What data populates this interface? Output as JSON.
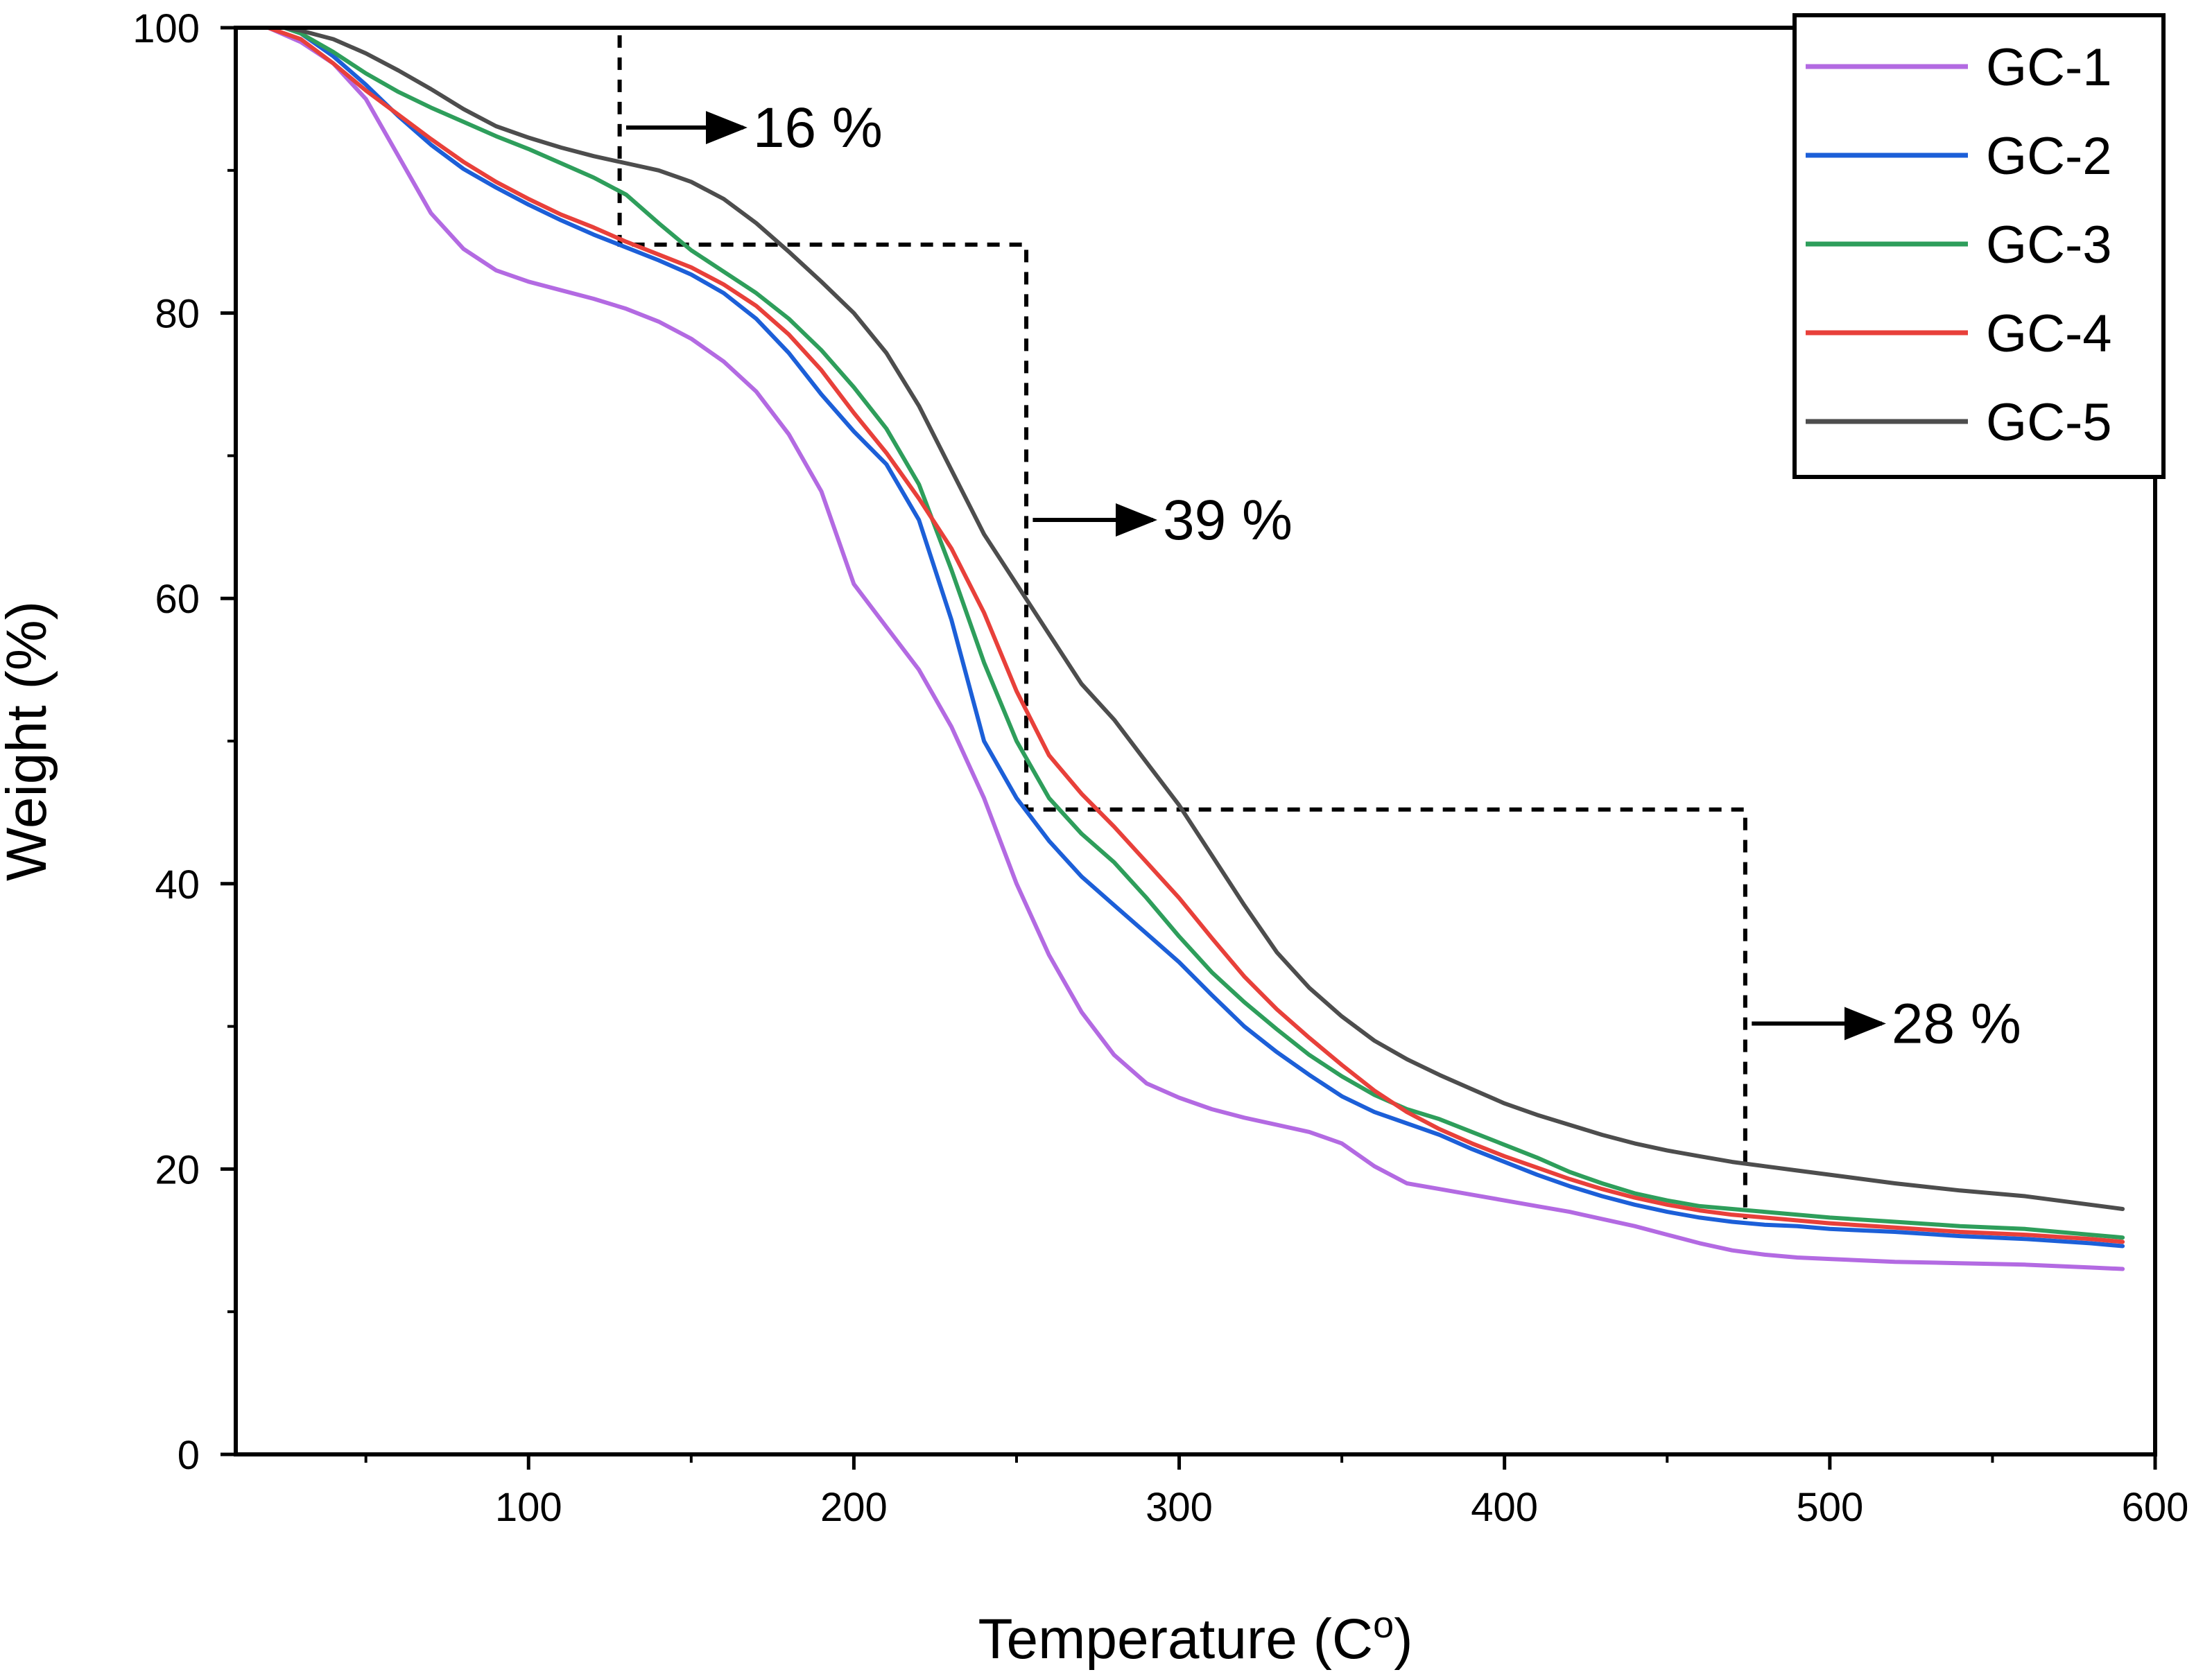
{
  "chart_data": {
    "type": "line",
    "title": "",
    "xlabel": "Temperature (C",
    "xlabel_sup": "o",
    "xlabel_close": ")",
    "ylabel": "Weight (%)",
    "xlim": [
      10,
      600
    ],
    "ylim": [
      0,
      100
    ],
    "xticks": [
      100,
      200,
      300,
      400,
      500,
      600
    ],
    "xticks_minor": [
      50,
      150,
      250,
      350,
      450,
      550
    ],
    "yticks": [
      0,
      20,
      40,
      60,
      80,
      100
    ],
    "yticks_minor": [
      10,
      30,
      50,
      70,
      90
    ],
    "legend_position": "top-right",
    "series": [
      {
        "name": "GC-1",
        "color": "#b36ae2",
        "points": [
          [
            20,
            100
          ],
          [
            30,
            99
          ],
          [
            40,
            97.5
          ],
          [
            50,
            95
          ],
          [
            60,
            91
          ],
          [
            70,
            87
          ],
          [
            80,
            84.5
          ],
          [
            90,
            83
          ],
          [
            100,
            82.2
          ],
          [
            110,
            81.6
          ],
          [
            120,
            81
          ],
          [
            130,
            80.3
          ],
          [
            140,
            79.4
          ],
          [
            150,
            78.2
          ],
          [
            160,
            76.6
          ],
          [
            170,
            74.5
          ],
          [
            180,
            71.5
          ],
          [
            190,
            67.5
          ],
          [
            200,
            61
          ],
          [
            210,
            58
          ],
          [
            220,
            55
          ],
          [
            230,
            51
          ],
          [
            240,
            46
          ],
          [
            250,
            40
          ],
          [
            260,
            35
          ],
          [
            270,
            31
          ],
          [
            280,
            28
          ],
          [
            290,
            26
          ],
          [
            300,
            25
          ],
          [
            310,
            24.2
          ],
          [
            320,
            23.6
          ],
          [
            330,
            23.1
          ],
          [
            340,
            22.6
          ],
          [
            350,
            21.8
          ],
          [
            360,
            20.2
          ],
          [
            370,
            19
          ],
          [
            380,
            18.6
          ],
          [
            390,
            18.2
          ],
          [
            400,
            17.8
          ],
          [
            410,
            17.4
          ],
          [
            420,
            17
          ],
          [
            430,
            16.5
          ],
          [
            440,
            16
          ],
          [
            450,
            15.4
          ],
          [
            460,
            14.8
          ],
          [
            470,
            14.3
          ],
          [
            480,
            14
          ],
          [
            490,
            13.8
          ],
          [
            500,
            13.7
          ],
          [
            520,
            13.5
          ],
          [
            540,
            13.4
          ],
          [
            560,
            13.3
          ],
          [
            580,
            13.1
          ],
          [
            590,
            13
          ]
        ]
      },
      {
        "name": "GC-2",
        "color": "#1c5fd8",
        "points": [
          [
            25,
            100
          ],
          [
            30,
            99.6
          ],
          [
            40,
            98
          ],
          [
            50,
            96
          ],
          [
            60,
            93.8
          ],
          [
            70,
            91.8
          ],
          [
            80,
            90.1
          ],
          [
            90,
            88.8
          ],
          [
            100,
            87.6
          ],
          [
            110,
            86.5
          ],
          [
            120,
            85.5
          ],
          [
            130,
            84.6
          ],
          [
            140,
            83.7
          ],
          [
            150,
            82.7
          ],
          [
            160,
            81.4
          ],
          [
            170,
            79.6
          ],
          [
            180,
            77.2
          ],
          [
            190,
            74.3
          ],
          [
            200,
            71.7
          ],
          [
            210,
            69.4
          ],
          [
            220,
            65.5
          ],
          [
            230,
            58.5
          ],
          [
            240,
            50
          ],
          [
            250,
            46
          ],
          [
            260,
            43
          ],
          [
            270,
            40.5
          ],
          [
            280,
            38.5
          ],
          [
            290,
            36.5
          ],
          [
            300,
            34.5
          ],
          [
            310,
            32.2
          ],
          [
            320,
            30
          ],
          [
            330,
            28.2
          ],
          [
            340,
            26.6
          ],
          [
            350,
            25.1
          ],
          [
            360,
            24
          ],
          [
            370,
            23.2
          ],
          [
            380,
            22.4
          ],
          [
            390,
            21.4
          ],
          [
            400,
            20.5
          ],
          [
            410,
            19.6
          ],
          [
            420,
            18.8
          ],
          [
            430,
            18.1
          ],
          [
            440,
            17.5
          ],
          [
            450,
            17
          ],
          [
            460,
            16.6
          ],
          [
            470,
            16.3
          ],
          [
            480,
            16.1
          ],
          [
            490,
            16
          ],
          [
            500,
            15.8
          ],
          [
            520,
            15.6
          ],
          [
            540,
            15.3
          ],
          [
            560,
            15.1
          ],
          [
            580,
            14.8
          ],
          [
            590,
            14.6
          ]
        ]
      },
      {
        "name": "GC-3",
        "color": "#2e9e5b",
        "points": [
          [
            25,
            100
          ],
          [
            30,
            99.6
          ],
          [
            40,
            98.3
          ],
          [
            50,
            96.8
          ],
          [
            60,
            95.5
          ],
          [
            70,
            94.4
          ],
          [
            80,
            93.4
          ],
          [
            90,
            92.4
          ],
          [
            100,
            91.5
          ],
          [
            110,
            90.5
          ],
          [
            120,
            89.5
          ],
          [
            130,
            88.3
          ],
          [
            140,
            86.3
          ],
          [
            150,
            84.4
          ],
          [
            160,
            82.9
          ],
          [
            170,
            81.4
          ],
          [
            180,
            79.6
          ],
          [
            190,
            77.4
          ],
          [
            200,
            74.8
          ],
          [
            210,
            71.9
          ],
          [
            220,
            68
          ],
          [
            230,
            62
          ],
          [
            240,
            55.5
          ],
          [
            250,
            50
          ],
          [
            260,
            46
          ],
          [
            270,
            43.5
          ],
          [
            280,
            41.5
          ],
          [
            290,
            39
          ],
          [
            300,
            36.3
          ],
          [
            310,
            33.8
          ],
          [
            320,
            31.7
          ],
          [
            330,
            29.8
          ],
          [
            340,
            28
          ],
          [
            350,
            26.5
          ],
          [
            360,
            25.2
          ],
          [
            370,
            24.2
          ],
          [
            380,
            23.5
          ],
          [
            390,
            22.6
          ],
          [
            400,
            21.7
          ],
          [
            410,
            20.8
          ],
          [
            420,
            19.8
          ],
          [
            430,
            19
          ],
          [
            440,
            18.3
          ],
          [
            450,
            17.8
          ],
          [
            460,
            17.4
          ],
          [
            470,
            17.2
          ],
          [
            480,
            17
          ],
          [
            490,
            16.8
          ],
          [
            500,
            16.6
          ],
          [
            520,
            16.3
          ],
          [
            540,
            16
          ],
          [
            560,
            15.8
          ],
          [
            580,
            15.4
          ],
          [
            590,
            15.2
          ]
        ]
      },
      {
        "name": "GC-4",
        "color": "#e8403a",
        "points": [
          [
            20,
            100
          ],
          [
            30,
            99.2
          ],
          [
            40,
            97.5
          ],
          [
            50,
            95.6
          ],
          [
            60,
            93.9
          ],
          [
            70,
            92.2
          ],
          [
            80,
            90.6
          ],
          [
            90,
            89.2
          ],
          [
            100,
            88
          ],
          [
            110,
            86.9
          ],
          [
            120,
            86
          ],
          [
            130,
            85
          ],
          [
            140,
            84.1
          ],
          [
            150,
            83.2
          ],
          [
            160,
            82
          ],
          [
            170,
            80.5
          ],
          [
            180,
            78.5
          ],
          [
            190,
            76
          ],
          [
            200,
            73
          ],
          [
            210,
            70.2
          ],
          [
            220,
            67
          ],
          [
            230,
            63.5
          ],
          [
            240,
            59
          ],
          [
            250,
            53.5
          ],
          [
            260,
            49
          ],
          [
            270,
            46.3
          ],
          [
            280,
            44
          ],
          [
            290,
            41.5
          ],
          [
            300,
            39
          ],
          [
            310,
            36.2
          ],
          [
            320,
            33.5
          ],
          [
            330,
            31.2
          ],
          [
            340,
            29.2
          ],
          [
            350,
            27.3
          ],
          [
            360,
            25.5
          ],
          [
            370,
            24
          ],
          [
            380,
            22.8
          ],
          [
            390,
            21.8
          ],
          [
            400,
            20.9
          ],
          [
            410,
            20.1
          ],
          [
            420,
            19.3
          ],
          [
            430,
            18.6
          ],
          [
            440,
            18
          ],
          [
            450,
            17.5
          ],
          [
            460,
            17.1
          ],
          [
            470,
            16.8
          ],
          [
            480,
            16.6
          ],
          [
            490,
            16.4
          ],
          [
            500,
            16.2
          ],
          [
            520,
            15.9
          ],
          [
            540,
            15.6
          ],
          [
            560,
            15.4
          ],
          [
            580,
            15.1
          ],
          [
            590,
            14.9
          ]
        ]
      },
      {
        "name": "GC-5",
        "color": "#4d4d4d",
        "points": [
          [
            25,
            100
          ],
          [
            30,
            99.8
          ],
          [
            40,
            99.2
          ],
          [
            50,
            98.2
          ],
          [
            60,
            97
          ],
          [
            70,
            95.7
          ],
          [
            80,
            94.3
          ],
          [
            90,
            93.1
          ],
          [
            100,
            92.3
          ],
          [
            110,
            91.6
          ],
          [
            120,
            91
          ],
          [
            130,
            90.5
          ],
          [
            140,
            90
          ],
          [
            150,
            89.2
          ],
          [
            160,
            88
          ],
          [
            170,
            86.3
          ],
          [
            180,
            84.3
          ],
          [
            190,
            82.2
          ],
          [
            200,
            80
          ],
          [
            210,
            77.2
          ],
          [
            220,
            73.5
          ],
          [
            230,
            69
          ],
          [
            240,
            64.5
          ],
          [
            250,
            61
          ],
          [
            260,
            57.5
          ],
          [
            270,
            54
          ],
          [
            280,
            51.5
          ],
          [
            290,
            48.5
          ],
          [
            300,
            45.5
          ],
          [
            310,
            42
          ],
          [
            320,
            38.5
          ],
          [
            330,
            35.2
          ],
          [
            340,
            32.7
          ],
          [
            350,
            30.7
          ],
          [
            360,
            29
          ],
          [
            370,
            27.7
          ],
          [
            380,
            26.6
          ],
          [
            390,
            25.6
          ],
          [
            400,
            24.6
          ],
          [
            410,
            23.8
          ],
          [
            420,
            23.1
          ],
          [
            430,
            22.4
          ],
          [
            440,
            21.8
          ],
          [
            450,
            21.3
          ],
          [
            460,
            20.9
          ],
          [
            470,
            20.5
          ],
          [
            480,
            20.2
          ],
          [
            490,
            19.9
          ],
          [
            500,
            19.6
          ],
          [
            520,
            19
          ],
          [
            540,
            18.5
          ],
          [
            560,
            18.1
          ],
          [
            580,
            17.5
          ],
          [
            590,
            17.2
          ]
        ]
      }
    ],
    "step_guide": {
      "points": [
        [
          28,
          100
        ],
        [
          128,
          100
        ],
        [
          128,
          84.8
        ],
        [
          253,
          84.8
        ],
        [
          253,
          45.2
        ],
        [
          474,
          45.2
        ],
        [
          474,
          16.5
        ]
      ]
    },
    "annotations": [
      {
        "text": "16 %",
        "arrow_from": [
          130,
          93
        ],
        "arrow_to": [
          166,
          93
        ]
      },
      {
        "text": "39 %",
        "arrow_from": [
          255,
          65.5
        ],
        "arrow_to": [
          292,
          65.5
        ]
      },
      {
        "text": "28 %",
        "arrow_from": [
          476,
          30.2
        ],
        "arrow_to": [
          516,
          30.2
        ]
      }
    ]
  }
}
